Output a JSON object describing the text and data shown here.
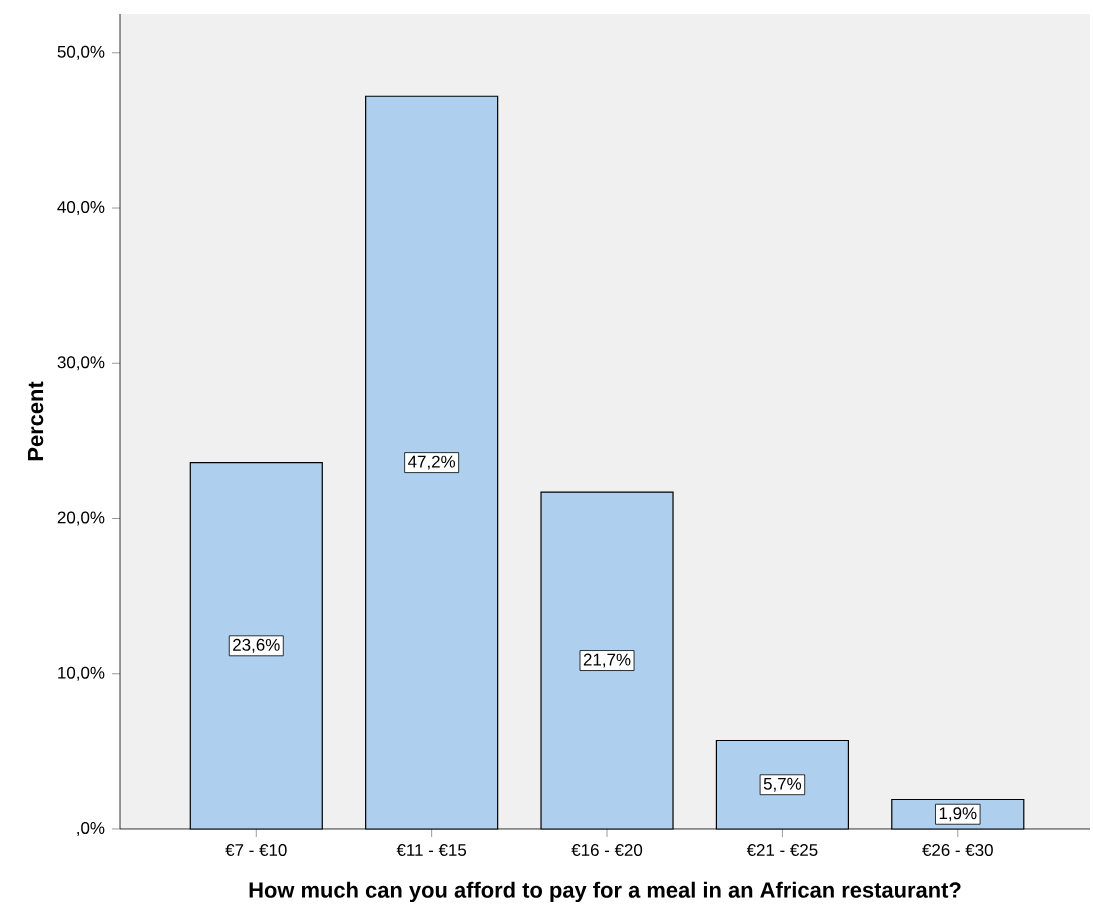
{
  "chart_data": {
    "type": "bar",
    "categories": [
      "€7 - €10",
      "€11 - €15",
      "€16 - €20",
      "€21 - €25",
      "€26 - €30"
    ],
    "values": [
      23.6,
      47.2,
      21.7,
      5.7,
      1.9
    ],
    "value_labels": [
      "23,6%",
      "47,2%",
      "21,7%",
      "5,7%",
      "1,9%"
    ],
    "color": "#aed0ee",
    "xlabel": "How much can you afford to pay for a meal in an African restaurant?",
    "ylabel": "Percent",
    "ylim": [
      0,
      52.5
    ],
    "yticks": [
      {
        "value": 0,
        "label": ",0%"
      },
      {
        "value": 10,
        "label": "10,0%"
      },
      {
        "value": 20,
        "label": "20,0%"
      },
      {
        "value": 30,
        "label": "30,0%"
      },
      {
        "value": 40,
        "label": "40,0%"
      },
      {
        "value": 50,
        "label": "50,0%"
      }
    ],
    "grid": false
  }
}
